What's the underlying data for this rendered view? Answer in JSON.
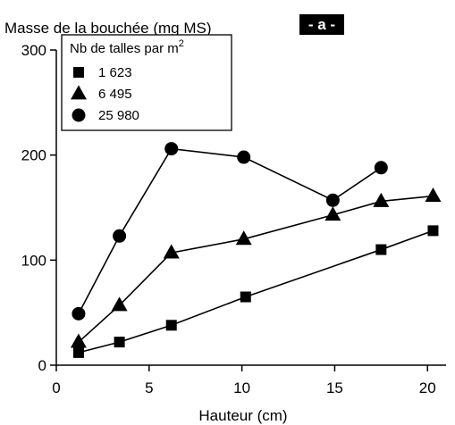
{
  "chart_data": {
    "type": "line",
    "ylabel": "Masse de la bouchée (mg MS)",
    "xlabel": "Hauteur (cm)",
    "panel_label": "- a -",
    "legend": {
      "title": "Nb de talles par m",
      "title_superscript": "2",
      "placement": "top-left"
    },
    "xlim": [
      0,
      21
    ],
    "ylim": [
      0,
      300
    ],
    "x_ticks": [
      0,
      5,
      10,
      15,
      20
    ],
    "y_ticks": [
      0,
      100,
      200,
      300
    ],
    "grid": false,
    "series": [
      {
        "name": "1 623",
        "marker": "square",
        "x": [
          1.2,
          3.4,
          6.2,
          10.2,
          17.5,
          20.3
        ],
        "y": [
          12,
          22,
          38,
          65,
          110,
          128
        ]
      },
      {
        "name": "6 495",
        "marker": "triangle",
        "x": [
          1.2,
          3.4,
          6.2,
          10.1,
          14.9,
          17.5,
          20.3
        ],
        "y": [
          22,
          57,
          107,
          120,
          143,
          156,
          161
        ]
      },
      {
        "name": "25 980",
        "marker": "circle",
        "x": [
          1.2,
          3.4,
          6.2,
          10.1,
          14.9,
          17.5
        ],
        "y": [
          49,
          123,
          206,
          198,
          157,
          188
        ]
      }
    ]
  }
}
